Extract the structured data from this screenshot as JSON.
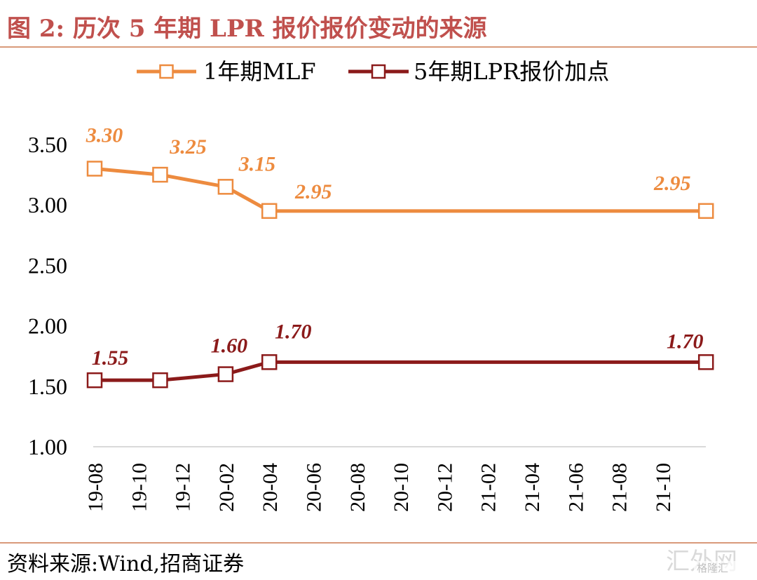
{
  "header": {
    "title": "图 2:  历次 5 年期 LPR 报价报价变动的来源"
  },
  "footer": {
    "source": "资料来源:Wind,招商证券"
  },
  "watermark": {
    "text": "汇外网",
    "subtext": "格隆汇"
  },
  "colors": {
    "accent": "#c0504d",
    "mlf": "#ed8b3f",
    "lpr": "#8b1a1a",
    "grid": "#d9d9d9",
    "text": "#000000"
  },
  "chart_data": {
    "type": "line",
    "title": "",
    "xlabel": "",
    "ylabel": "",
    "ylim": [
      1.0,
      3.5
    ],
    "yticks": [
      "1.00",
      "1.50",
      "2.00",
      "2.50",
      "3.00",
      "3.50"
    ],
    "categories": [
      "19-08",
      "19-10",
      "19-12",
      "20-02",
      "20-04",
      "20-06",
      "20-08",
      "20-10",
      "20-12",
      "21-02",
      "21-04",
      "21-06",
      "21-08",
      "21-10"
    ],
    "legend_position": "top",
    "series": [
      {
        "name": "1年期MLF",
        "color": "#ed8b3f",
        "points": [
          {
            "x": 0,
            "y": 3.3,
            "label": "3.30"
          },
          {
            "x": 1.5,
            "y": 3.25,
            "label": "3.25"
          },
          {
            "x": 3,
            "y": 3.15,
            "label": "3.15"
          },
          {
            "x": 4,
            "y": 2.95,
            "label": "2.95"
          },
          {
            "x": 14,
            "y": 2.95,
            "label": "2.95"
          }
        ]
      },
      {
        "name": "5年期LPR报价加点",
        "color": "#8b1a1a",
        "points": [
          {
            "x": 0,
            "y": 1.55,
            "label": "1.55"
          },
          {
            "x": 1.5,
            "y": 1.55,
            "label": ""
          },
          {
            "x": 3,
            "y": 1.6,
            "label": "1.60"
          },
          {
            "x": 4,
            "y": 1.7,
            "label": "1.70"
          },
          {
            "x": 14,
            "y": 1.7,
            "label": "1.70"
          }
        ]
      }
    ]
  }
}
